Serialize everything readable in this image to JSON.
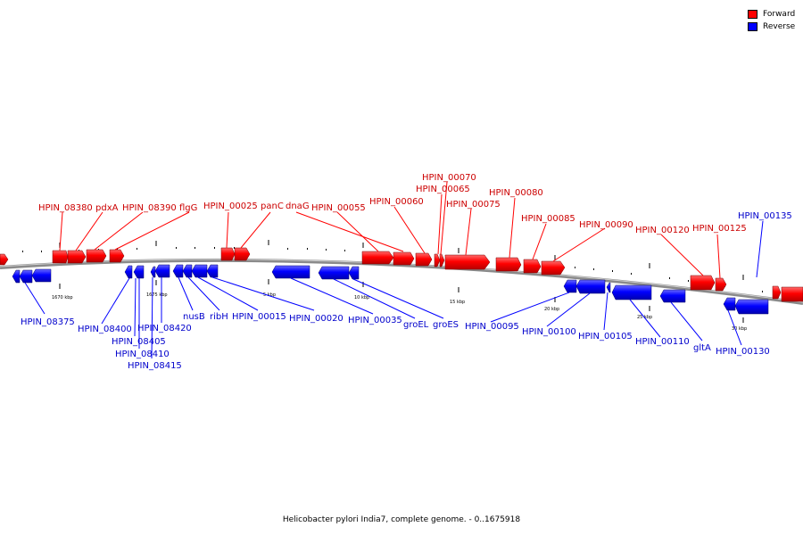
{
  "legend": {
    "forward_label": "Forward",
    "reverse_label": "Reverse",
    "forward_color": "#ff0000",
    "reverse_color": "#0000ff"
  },
  "caption": "Helicobacter pylori India7, complete genome. - 0..1675918",
  "scale_labels": [
    "1670 kbp",
    "1675 kbp",
    "5 kbp",
    "10 kbp",
    "15 kbp",
    "20 kbp",
    "25 kbp",
    "30 kbp"
  ],
  "forward_labels": [
    "HPIN_08380",
    "pdxA",
    "HPIN_08390",
    "flgG",
    "HPIN_00025",
    "panC",
    "dnaG",
    "HPIN_00055",
    "HPIN_00060",
    "HPIN_00065",
    "HPIN_00070",
    "HPIN_00075",
    "HPIN_00080",
    "HPIN_00085",
    "HPIN_00090",
    "HPIN_00120",
    "HPIN_00125"
  ],
  "reverse_labels": [
    "HPIN_08375",
    "HPIN_08400",
    "HPIN_08405",
    "HPIN_08410",
    "HPIN_08415",
    "HPIN_08420",
    "nusB",
    "ribH",
    "HPIN_00015",
    "HPIN_00020",
    "HPIN_00035",
    "groEL",
    "groES",
    "HPIN_00095",
    "HPIN_00100",
    "HPIN_00105",
    "HPIN_00110",
    "gltA",
    "HPIN_00130",
    "HPIN_00135"
  ]
}
